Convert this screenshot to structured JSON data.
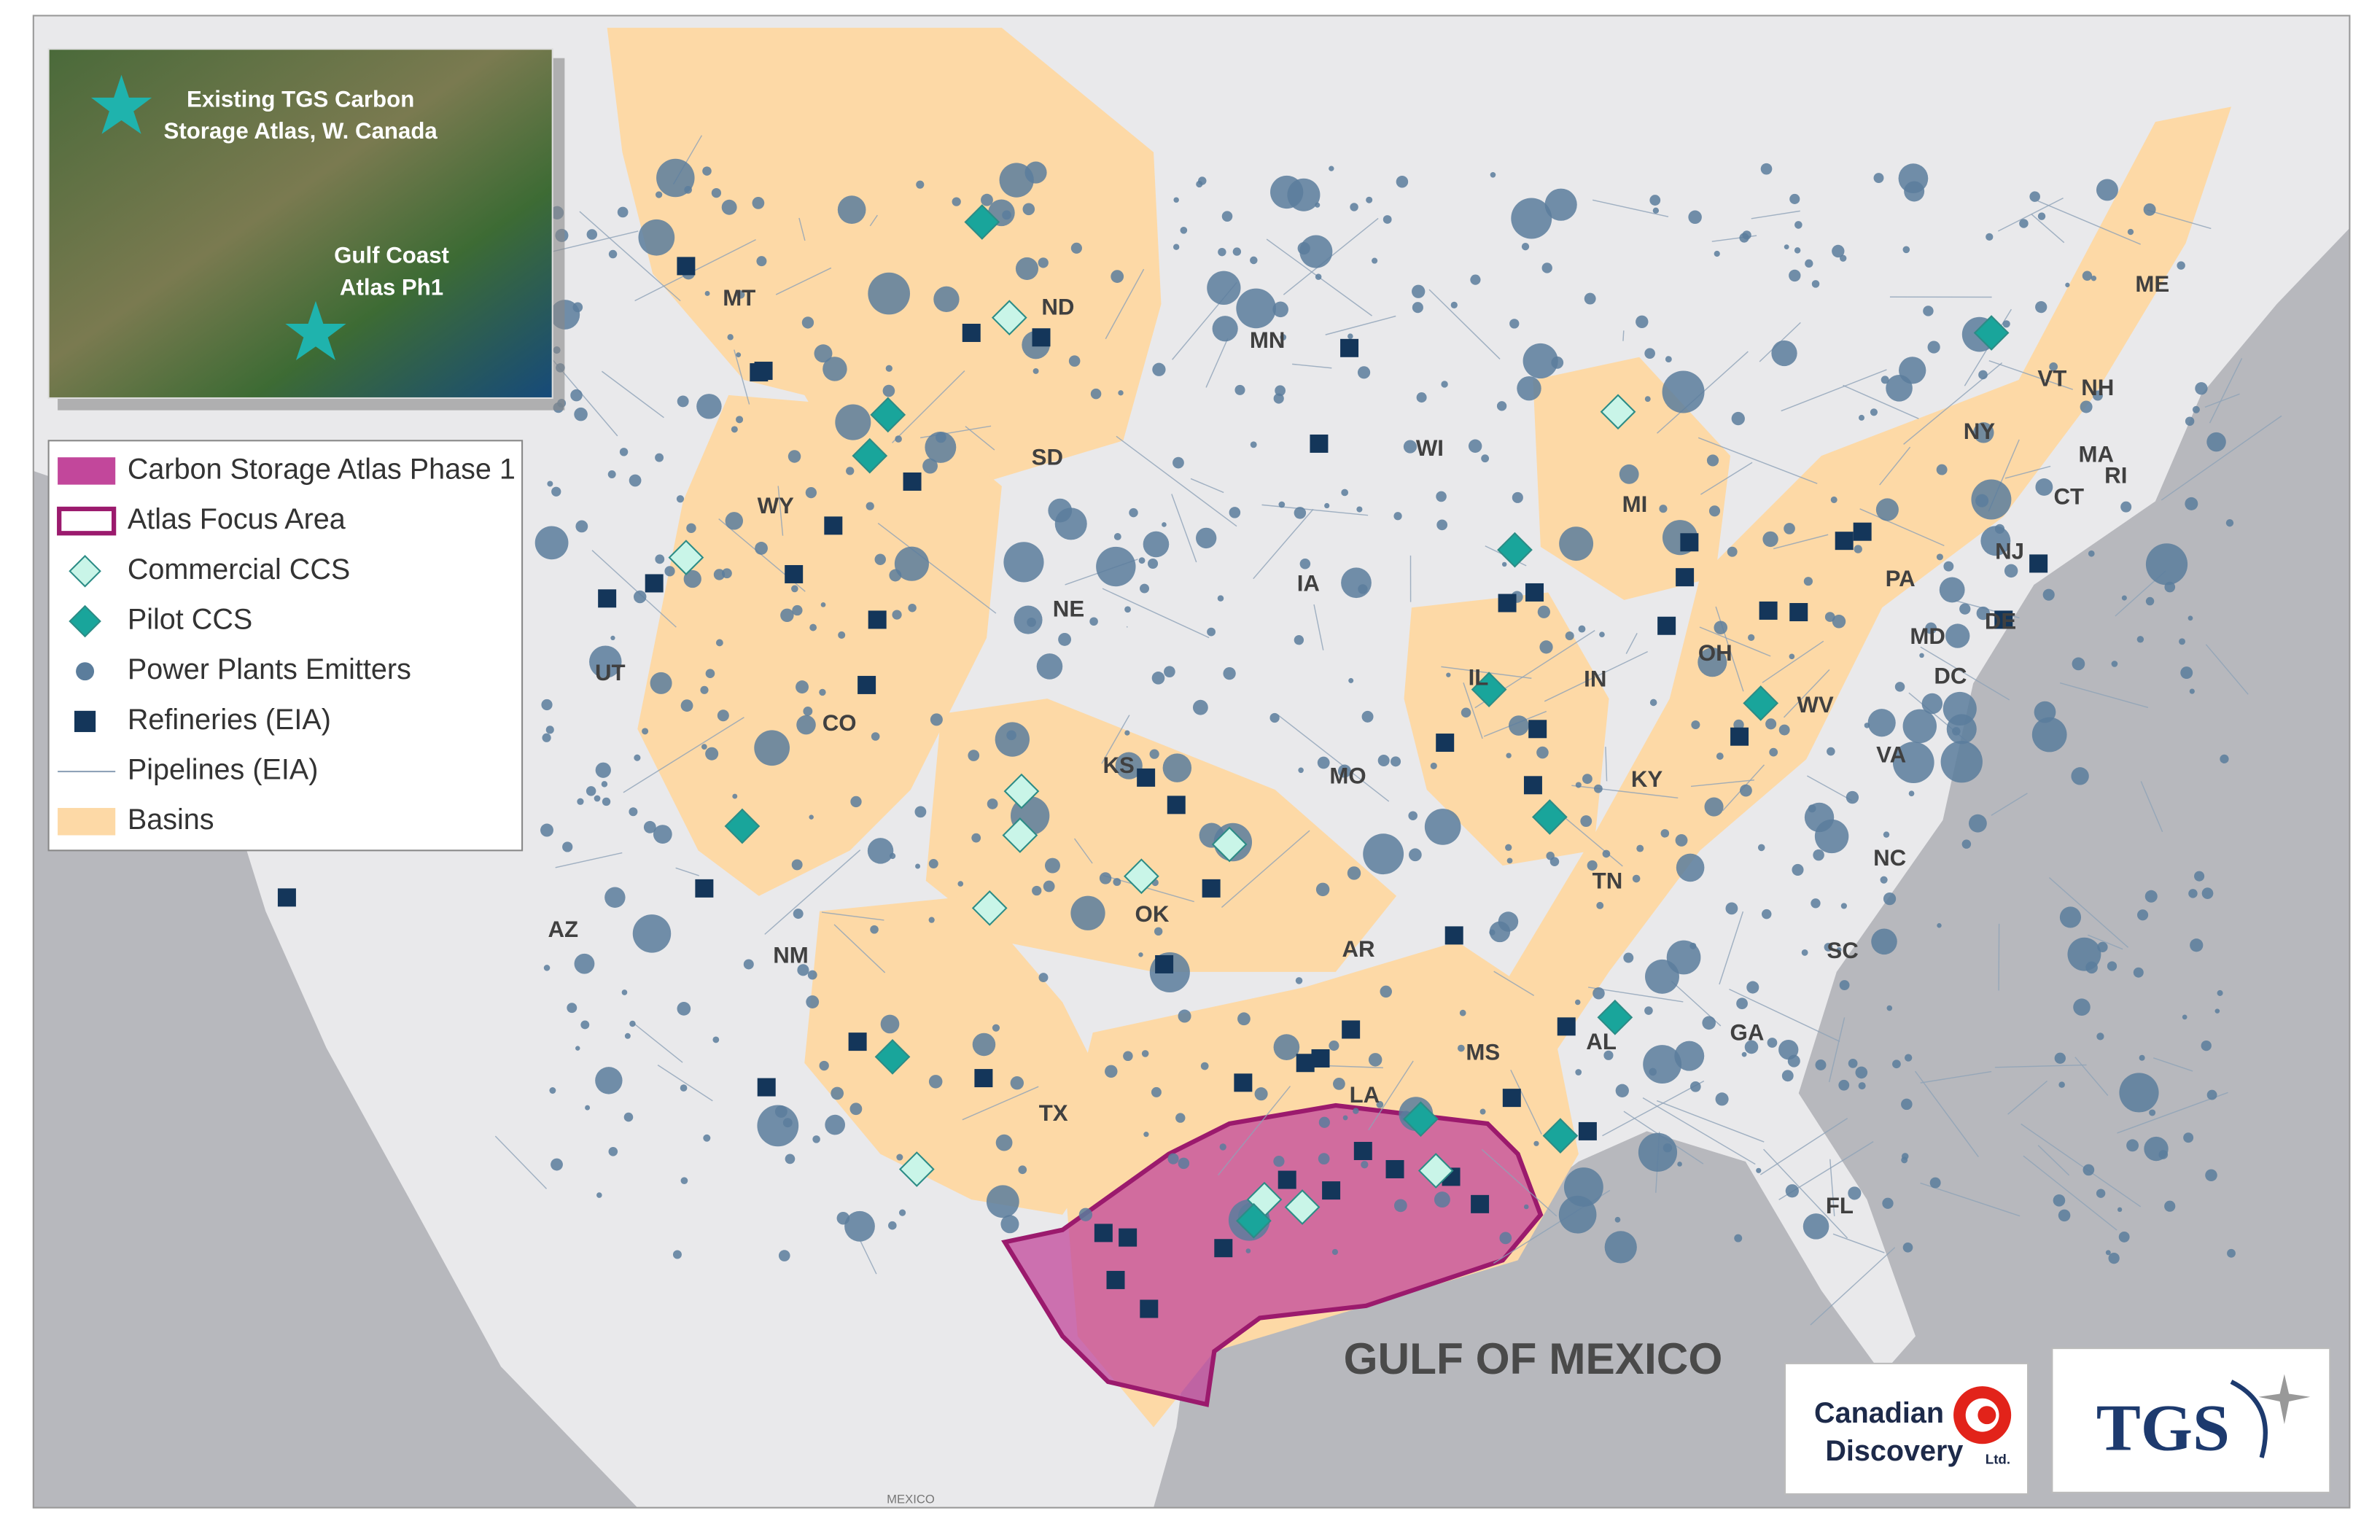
{
  "inset": {
    "labels": [
      [
        "Existing TGS Carbon",
        "Storage Atlas, W. Canada"
      ],
      [
        "Gulf Coast",
        "Atlas Ph1"
      ]
    ]
  },
  "legend": {
    "items": [
      "Carbon Storage Atlas Phase 1",
      "Atlas Focus Area",
      "Commercial CCS",
      "Pilot CCS",
      "Power Plants Emitters",
      "Refineries (EIA)",
      "Pipelines (EIA)",
      "Basins"
    ]
  },
  "map": {
    "state_labels": [
      "MT",
      "ND",
      "MN",
      "SD",
      "WY",
      "WI",
      "MI",
      "NY",
      "ME",
      "VT",
      "NH",
      "MA",
      "CT",
      "RI",
      "NJ",
      "PA",
      "IA",
      "NE",
      "OH",
      "IN",
      "IL",
      "UT",
      "CO",
      "MD",
      "DE",
      "DC",
      "WV",
      "VA",
      "KS",
      "MO",
      "KY",
      "NC",
      "TN",
      "OK",
      "AZ",
      "NM",
      "AR",
      "SC",
      "AL",
      "GA",
      "MS",
      "TX",
      "LA",
      "FL"
    ],
    "water_label": "GULF OF MEXICO",
    "country_label": "MEXICO"
  },
  "logos": {
    "canadian_discovery": [
      "Canadian",
      "Discovery",
      "Ltd."
    ],
    "tgs": "TGS"
  }
}
